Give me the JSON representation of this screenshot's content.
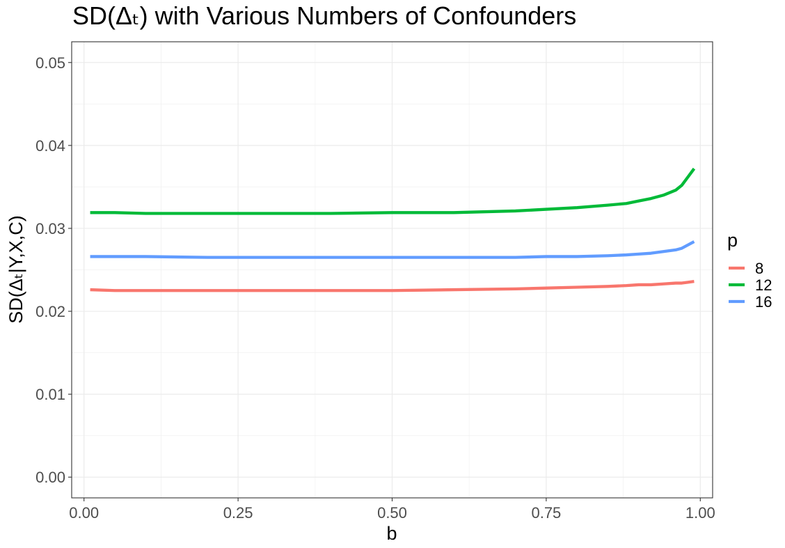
{
  "chart_data": {
    "type": "line",
    "title": "SD(Δₜ) with Various Numbers of Confounders",
    "xlabel": "b",
    "ylabel": "SD(Δₜ|Y,X,C)",
    "xlim": [
      -0.02,
      1.02
    ],
    "ylim": [
      -0.0025,
      0.0525
    ],
    "x_ticks": [
      0.0,
      0.25,
      0.5,
      0.75,
      1.0
    ],
    "x_tick_labels": [
      "0.00",
      "0.25",
      "0.50",
      "0.75",
      "1.00"
    ],
    "y_ticks": [
      0.0,
      0.01,
      0.02,
      0.03,
      0.04,
      0.05
    ],
    "y_tick_labels": [
      "0.00",
      "0.01",
      "0.02",
      "0.03",
      "0.04",
      "0.05"
    ],
    "grid": true,
    "legend": {
      "title": "p",
      "position": "right"
    },
    "x": [
      0.01,
      0.05,
      0.1,
      0.2,
      0.3,
      0.4,
      0.5,
      0.6,
      0.7,
      0.75,
      0.8,
      0.85,
      0.88,
      0.9,
      0.92,
      0.94,
      0.96,
      0.97,
      0.98,
      0.99
    ],
    "series": [
      {
        "name": "8",
        "color": "#F8766D",
        "values": [
          0.0226,
          0.0225,
          0.0225,
          0.0225,
          0.0225,
          0.0225,
          0.0225,
          0.0226,
          0.0227,
          0.0228,
          0.0229,
          0.023,
          0.0231,
          0.0232,
          0.0232,
          0.0233,
          0.0234,
          0.0234,
          0.0235,
          0.0236
        ]
      },
      {
        "name": "12",
        "color": "#00BA38",
        "values": [
          0.0319,
          0.0319,
          0.0318,
          0.0318,
          0.0318,
          0.0318,
          0.0319,
          0.0319,
          0.0321,
          0.0323,
          0.0325,
          0.0328,
          0.033,
          0.0333,
          0.0336,
          0.034,
          0.0346,
          0.0352,
          0.0362,
          0.0372
        ]
      },
      {
        "name": "16",
        "color": "#619CFF",
        "values": [
          0.0266,
          0.0266,
          0.0266,
          0.0265,
          0.0265,
          0.0265,
          0.0265,
          0.0265,
          0.0265,
          0.0266,
          0.0266,
          0.0267,
          0.0268,
          0.0269,
          0.027,
          0.0272,
          0.0274,
          0.0276,
          0.028,
          0.0284
        ]
      }
    ]
  }
}
